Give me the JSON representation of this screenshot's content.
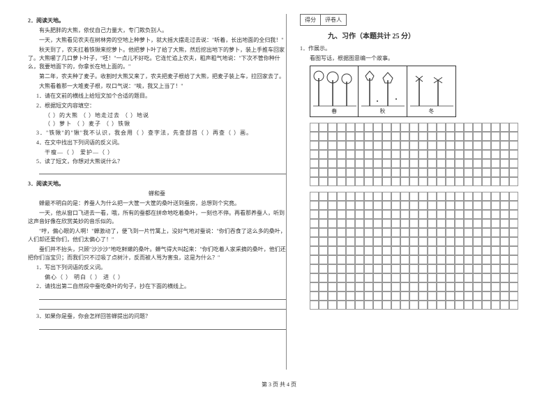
{
  "left": {
    "q2": {
      "num": "2．阅读天地。",
      "p1": "有头肥胖的大熊，依仗自己力量大，专门欺负别人。",
      "p2": "一天，大熊看见农夫在树林旁的空地上种萝卜，就大摇大摆走过去说：\"听着，长出地面的全归我！\"",
      "p3": "秋天到了，农夫扛着铁锹来挖萝卜。他把萝卜叶了给了大熊，然后挖出地下的萝卜，装上手推车回家了。大熊嚼了几口萝卜叶子，\"呸！\"一点儿不好吃。它连忙追上农夫，粗声粗气地说：\"下次不管你种什么，我要地面下的，你拿长在地上面的。\"",
      "p4": "第二年，农夫种了麦子。收割时大熊又来了，农夫把麦子根给了大熊，把麦子装上车，拉回家去了。",
      "p5": "大熊看着那一大堆麦子根，叹口气说：\"唉，我又上当了！\"",
      "sub1": "1．请在文前的横线上给短文加个合适的题目。",
      "sub2": "2．根据短文内容填空：",
      "sub2a": "（          ）的大熊       （          ）地走过去    （          ）地说",
      "sub2b": "（          ）萝卜           （          ）麦子           （          ）铁锹",
      "sub3": "3．\"铁锹\"的\"锹\"我不认识，我会用（          ）查字法，先查部首（          ）再查（          ）画。",
      "sub4": "4．在文中找出下列词语的反义词。",
      "sub4a": "干瘦—（          ）        爱护—（          ）",
      "sub5": "5．读了短文，你想对大熊说什么？"
    },
    "q3": {
      "num": "3．阅读天地。",
      "title": "蝉和蚕",
      "p1": "蝉最不明白的是：养蚕人为什么把一大筐一大筐的桑叶送到蚕房，总想到个究竟。",
      "p2": "一天，他从窗口飞进去一看，哦，所有的蚕都在拼命地吃着桑叶，一刻也不停。再看那养蚕人，听到这声音好像在欣赏美妙的音乐似的。",
      "p3": "\"哼，偏心眼的人啊！\"蝉激动了，便飞到一片竹篱上，没好气地对蚕说：\"你们吞食了这么多的桑叶，人们却还爱你们，他们太偏心了！\"",
      "p4": "蚕们并不抬头，只顾\"沙沙沙\"地吃鲜嫩的桑叶。蝉气得大叫起来：\"你们吃着人家采摘的桑叶，他们还把你们当宝贝；而我们只不过吸了点树汁，反而被人骂为害虫，这是为什么？\"",
      "sub1": "1．写出下列词语的反义词。",
      "sub1a": "偏心（          ）    明白（          ）    进（          ）",
      "sub2": "2．请找出第二自然段中蚕吃桑叶的句子，抄在下面的横线上。",
      "sub3": "3．如果你是蚕，你会怎样回答蝉提出的问题？"
    }
  },
  "right": {
    "score1": "得分",
    "score2": "评卷人",
    "header": "九、习作（本题共计 25 分）",
    "q1": "1．作展示。",
    "q1sub": "看图写话，根据图意编一个故事。",
    "seasons": [
      "春",
      "秋",
      "冬"
    ]
  },
  "footer": "第 3 页  共 4 页",
  "gridCols": 23,
  "gridBlocks": 2,
  "gridRowsA": 7,
  "gridRowsB": 13
}
